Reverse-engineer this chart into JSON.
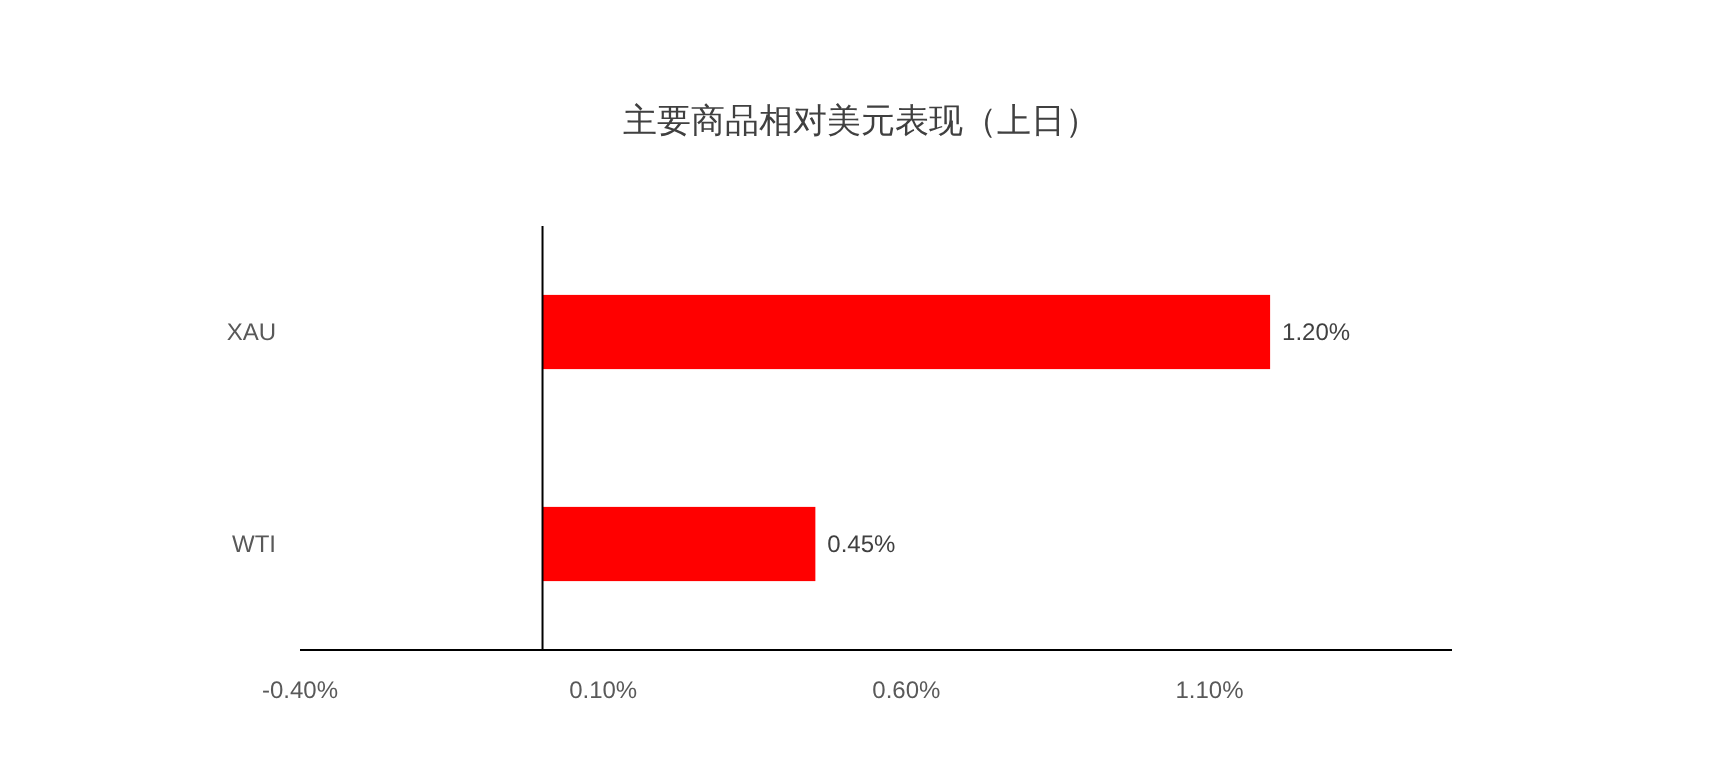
{
  "chart_data": {
    "type": "bar",
    "orientation": "horizontal",
    "title": "主要商品相对美元表现（上日）",
    "categories": [
      "XAU",
      "WTI"
    ],
    "values": [
      1.2,
      0.45
    ],
    "value_labels": [
      "1.20%",
      "0.45%"
    ],
    "color": "#ff0000",
    "xlim": [
      -0.4,
      1.5
    ],
    "xticks": [
      {
        "value": -0.4,
        "label": "-0.40%"
      },
      {
        "value": 0.1,
        "label": "0.10%"
      },
      {
        "value": 0.6,
        "label": "0.60%"
      },
      {
        "value": 1.1,
        "label": "1.10%"
      }
    ]
  }
}
